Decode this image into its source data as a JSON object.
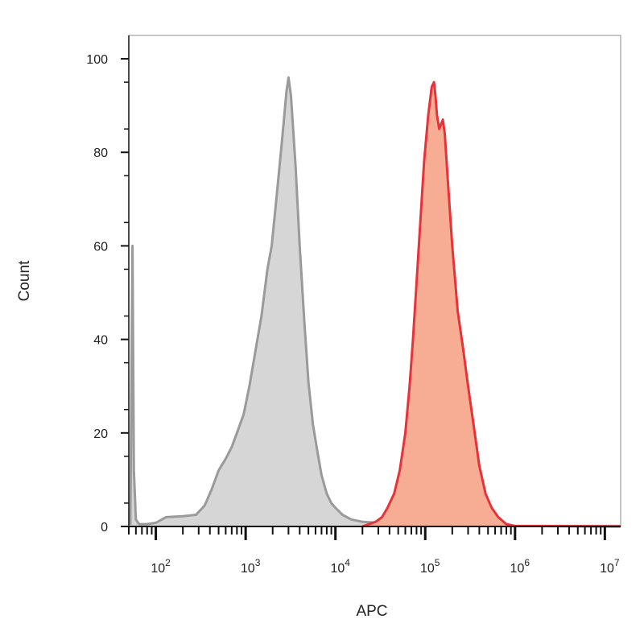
{
  "chart_data": {
    "type": "area",
    "xlabel": "APC",
    "ylabel": "Count",
    "x_scale": "log",
    "xlim": [
      50,
      15000000
    ],
    "ylim": [
      0,
      105
    ],
    "x_ticks": [
      {
        "value": 100,
        "base": "10",
        "exp": "2"
      },
      {
        "value": 1000,
        "base": "10",
        "exp": "3"
      },
      {
        "value": 10000,
        "base": "10",
        "exp": "4"
      },
      {
        "value": 100000,
        "base": "10",
        "exp": "5"
      },
      {
        "value": 1000000,
        "base": "10",
        "exp": "6"
      },
      {
        "value": 10000000,
        "base": "10",
        "exp": "7"
      }
    ],
    "y_ticks": [
      {
        "value": 0,
        "label": "0"
      },
      {
        "value": 20,
        "label": "20"
      },
      {
        "value": 40,
        "label": "40"
      },
      {
        "value": 60,
        "label": "60"
      },
      {
        "value": 80,
        "label": "80"
      },
      {
        "value": 100,
        "label": "100"
      }
    ],
    "grid": false,
    "series": [
      {
        "fill": "#d6d6d6",
        "stroke": "#9a9a9a",
        "points": [
          [
            52,
            0.3
          ],
          [
            55,
            60
          ],
          [
            57,
            12
          ],
          [
            60,
            1.5
          ],
          [
            65,
            0.5
          ],
          [
            80,
            0.5
          ],
          [
            100,
            0.8
          ],
          [
            130,
            2
          ],
          [
            200,
            2.2
          ],
          [
            280,
            2.5
          ],
          [
            350,
            4.5
          ],
          [
            420,
            8
          ],
          [
            500,
            12
          ],
          [
            600,
            14.5
          ],
          [
            700,
            17
          ],
          [
            800,
            20
          ],
          [
            950,
            24
          ],
          [
            1100,
            30
          ],
          [
            1300,
            38
          ],
          [
            1500,
            45
          ],
          [
            1750,
            55
          ],
          [
            1950,
            60
          ],
          [
            2200,
            70
          ],
          [
            2500,
            81
          ],
          [
            2850,
            93
          ],
          [
            3000,
            96
          ],
          [
            3200,
            92
          ],
          [
            3600,
            77
          ],
          [
            4000,
            60
          ],
          [
            4500,
            44
          ],
          [
            5000,
            31
          ],
          [
            5600,
            22
          ],
          [
            6300,
            16
          ],
          [
            7000,
            11
          ],
          [
            8000,
            7
          ],
          [
            9000,
            5
          ],
          [
            10000,
            4
          ],
          [
            12000,
            2.5
          ],
          [
            15000,
            1.5
          ],
          [
            20000,
            1
          ],
          [
            30000,
            0.8
          ],
          [
            50000,
            0.5
          ],
          [
            100000,
            0.3
          ],
          [
            1000000,
            0.1
          ],
          [
            15000000,
            0.1
          ]
        ]
      },
      {
        "fill": "#f7ad94",
        "stroke": "#e8323a",
        "points": [
          [
            20000,
            0
          ],
          [
            28000,
            1
          ],
          [
            33000,
            2
          ],
          [
            38000,
            4
          ],
          [
            45000,
            7
          ],
          [
            52000,
            12
          ],
          [
            60000,
            20
          ],
          [
            67000,
            30
          ],
          [
            73000,
            40
          ],
          [
            80000,
            52
          ],
          [
            88000,
            65
          ],
          [
            97000,
            78
          ],
          [
            108000,
            88
          ],
          [
            118000,
            94
          ],
          [
            125000,
            95
          ],
          [
            130000,
            92
          ],
          [
            135000,
            88
          ],
          [
            143000,
            85
          ],
          [
            150000,
            86
          ],
          [
            157000,
            87
          ],
          [
            165000,
            84
          ],
          [
            180000,
            73
          ],
          [
            200000,
            60
          ],
          [
            230000,
            46
          ],
          [
            260000,
            39
          ],
          [
            300000,
            30
          ],
          [
            350000,
            21
          ],
          [
            400000,
            13
          ],
          [
            470000,
            7
          ],
          [
            550000,
            4
          ],
          [
            650000,
            2
          ],
          [
            800000,
            0.5
          ],
          [
            1000000,
            0.1
          ],
          [
            15000000,
            0
          ]
        ]
      }
    ]
  }
}
